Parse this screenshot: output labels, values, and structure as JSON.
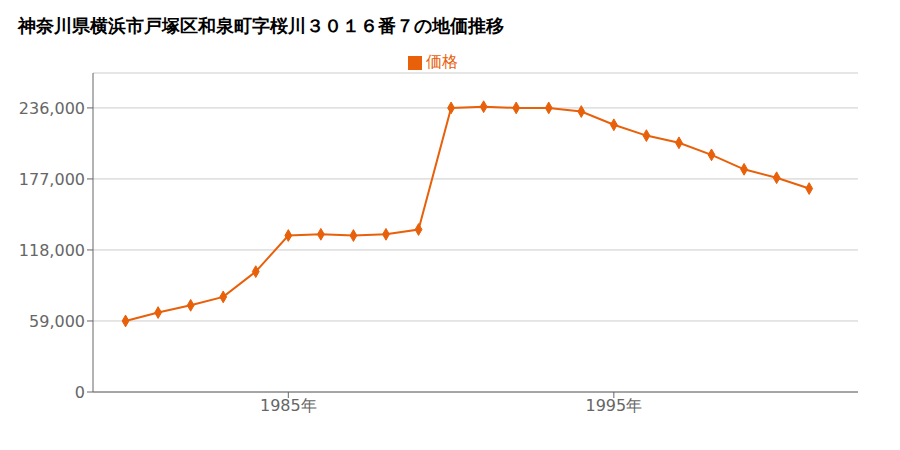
{
  "chart_data": {
    "type": "line",
    "title": "神奈川県横浜市戸塚区和泉町字桜川３０１６番７の地価推移",
    "x": [
      1980,
      1981,
      1982,
      1983,
      1984,
      1985,
      1986,
      1987,
      1988,
      1989,
      1990,
      1991,
      1992,
      1993,
      1994,
      1995,
      1996,
      1997,
      1998,
      1999,
      2000,
      2001
    ],
    "series": [
      {
        "name": "価格",
        "color": "#e8600a",
        "marker": "diamond",
        "values": [
          59000,
          66000,
          72000,
          79000,
          100000,
          130000,
          131000,
          130000,
          131000,
          135000,
          236000,
          237000,
          236000,
          236000,
          233000,
          222000,
          213000,
          207000,
          197000,
          185000,
          178000,
          169000
        ]
      }
    ],
    "xlim": [
      1979.0,
      2002.5
    ],
    "xticks": [
      {
        "value": 1985,
        "label": "1985年"
      },
      {
        "value": 1995,
        "label": "1995年"
      }
    ],
    "ylim": [
      0,
      265000
    ],
    "yticks": [
      0,
      {
        "value": 59000,
        "label": "59,000"
      },
      {
        "value": 118000,
        "label": "118,000"
      },
      {
        "value": 177000,
        "label": "177,000"
      },
      {
        "value": 236000,
        "label": "236,000"
      }
    ],
    "grid": "y",
    "legend": "top"
  }
}
